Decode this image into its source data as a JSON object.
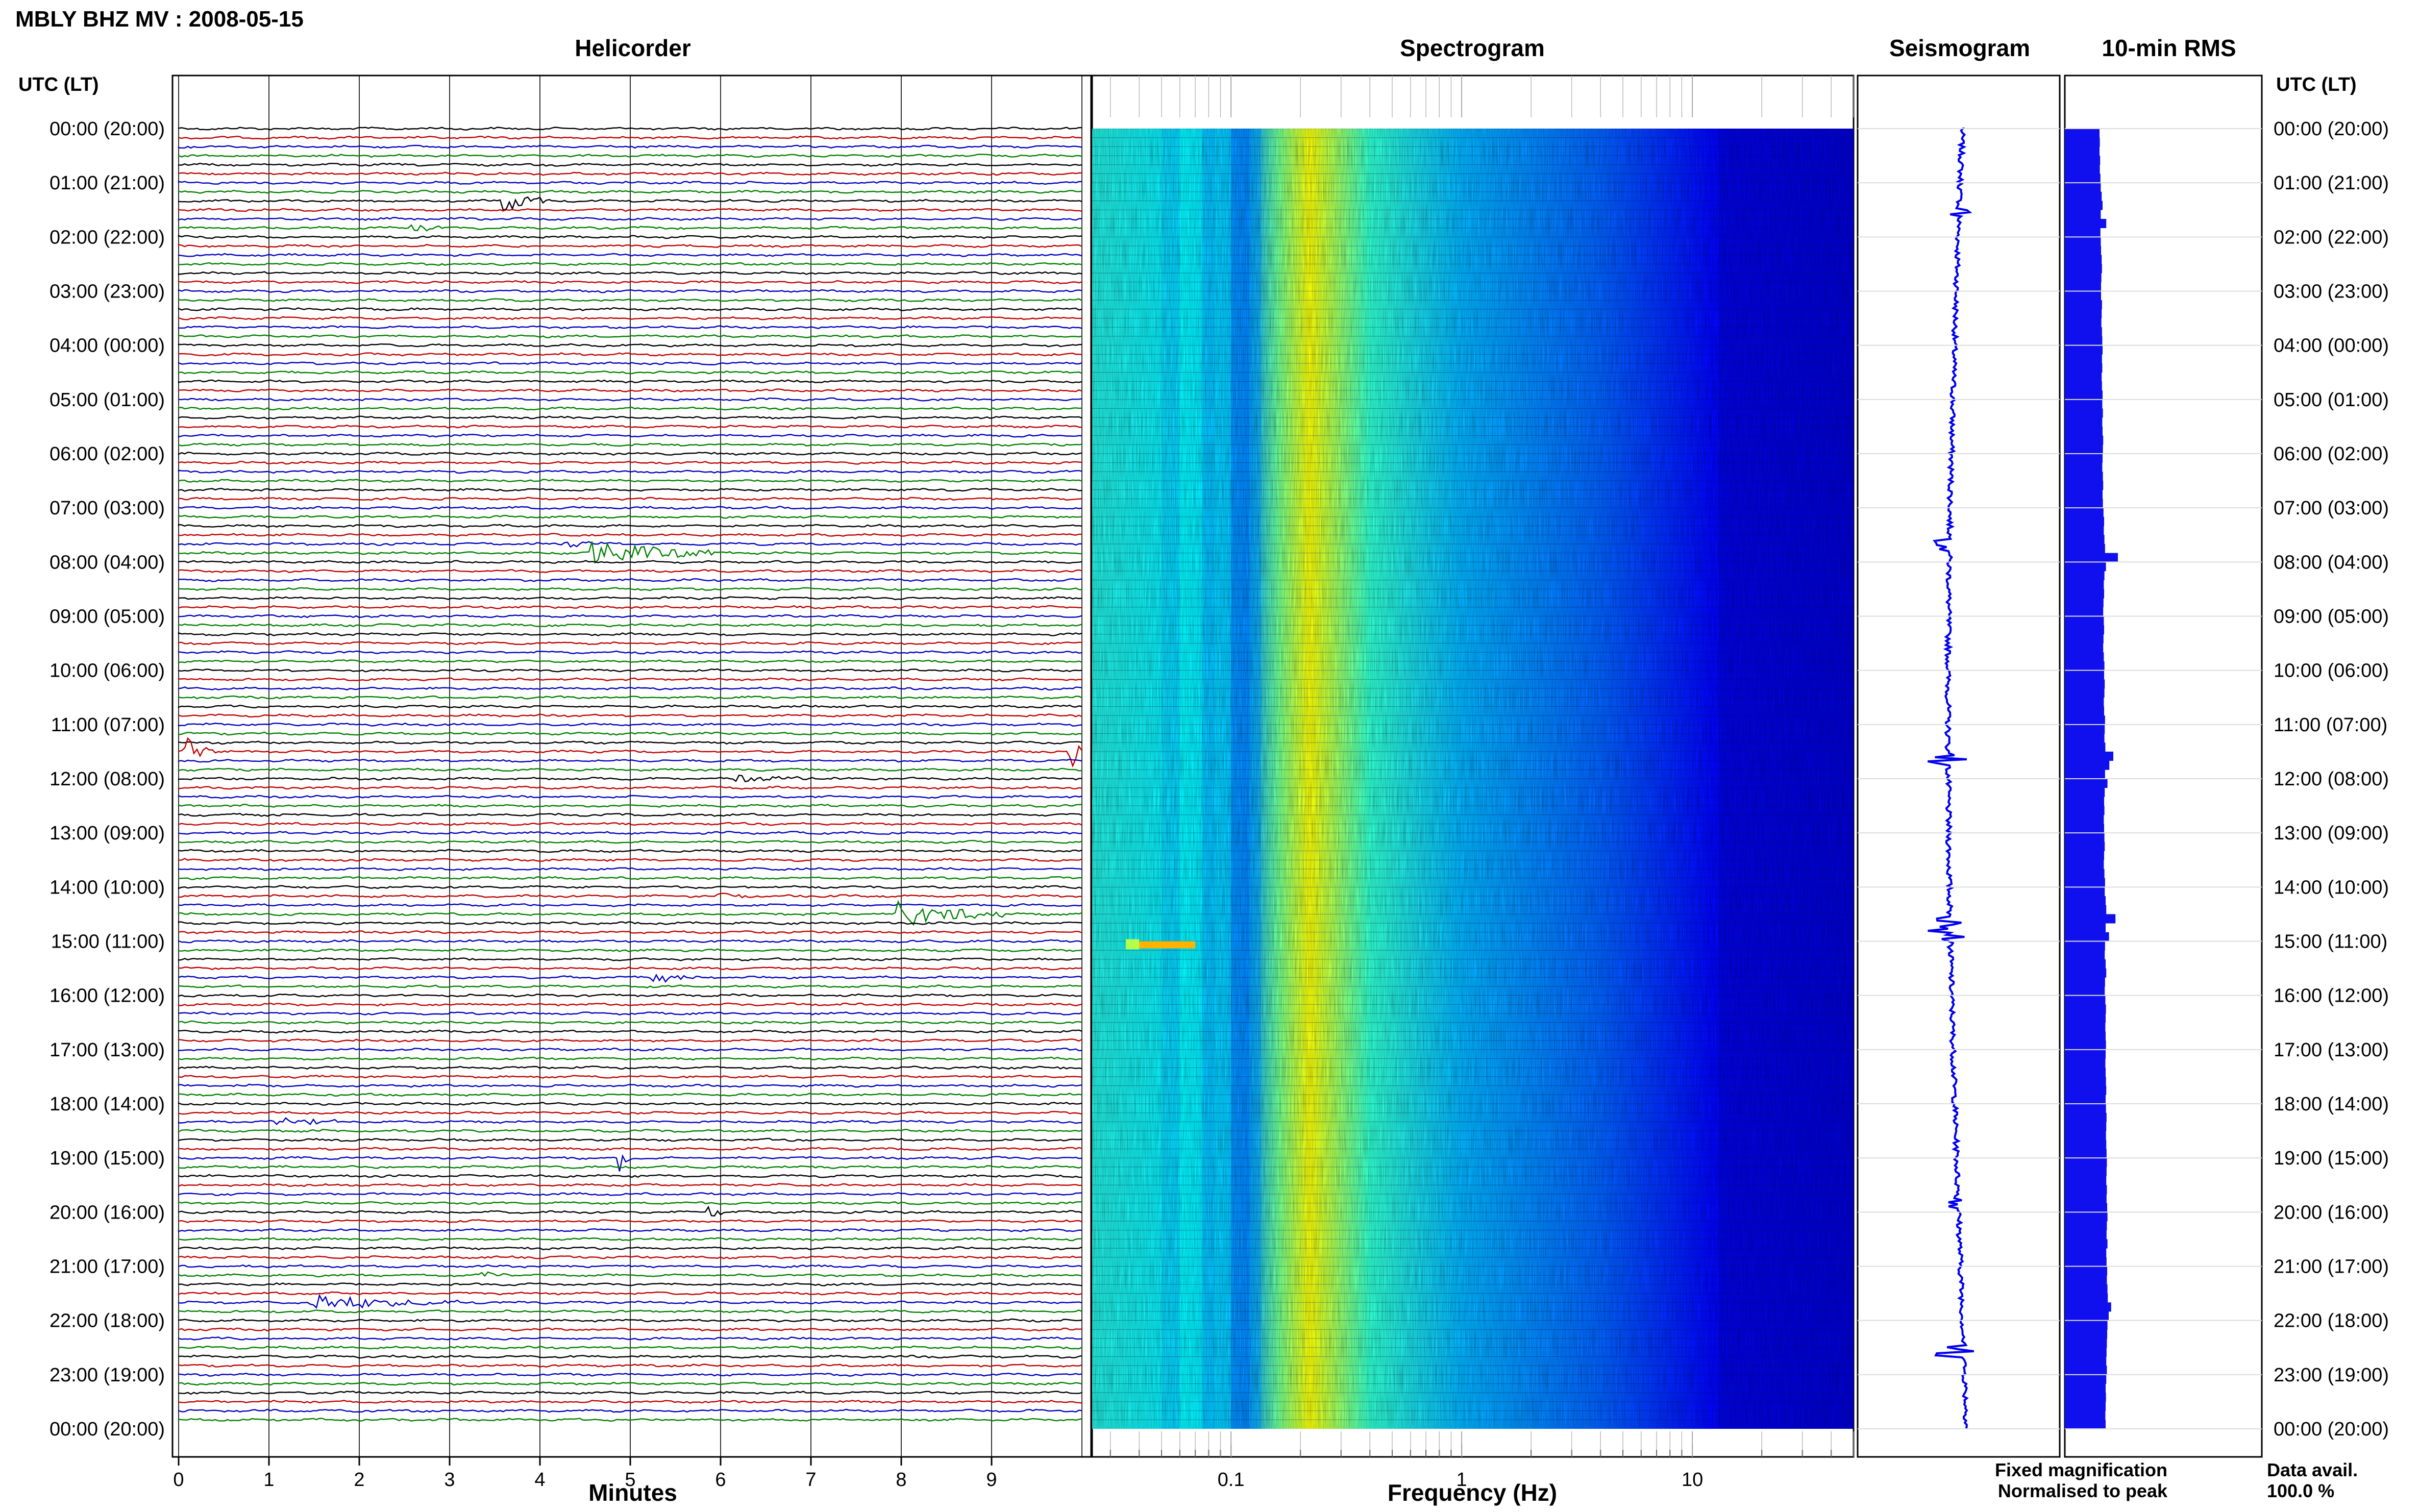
{
  "station_title": "MBLY BHZ MV : 2008-05-15",
  "panels": {
    "helicorder": "Helicorder",
    "spectrogram": "Spectrogram",
    "seismogram": "Seismogram",
    "rms": "10-min RMS"
  },
  "time_axis_label": "UTC (LT)",
  "footer": {
    "fixed_magnification": "Fixed magnification",
    "normalised_to_peak": "Normalised to peak",
    "data_avail_label": "Data avail.",
    "data_avail_value": "100.0 %"
  },
  "colors": {
    "fixed": "#1f1fff",
    "normalised": "#ff1a1a",
    "trace_cycle": [
      "#000000",
      "#c00000",
      "#0000c0",
      "#008000"
    ],
    "rms_bar": "#1010ee"
  },
  "chart_data": [
    {
      "type": "line",
      "title": "Helicorder",
      "xlabel": "Minutes",
      "x_ticks": [
        "0",
        "1",
        "2",
        "3",
        "4",
        "5",
        "6",
        "7",
        "8",
        "9"
      ],
      "xlim": [
        0,
        10
      ],
      "y_ticks": [
        "00:00 (20:00)",
        "01:00 (21:00)",
        "02:00 (22:00)",
        "03:00 (23:00)",
        "04:00 (00:00)",
        "05:00 (01:00)",
        "06:00 (02:00)",
        "07:00 (03:00)",
        "08:00 (04:00)",
        "09:00 (05:00)",
        "10:00 (06:00)",
        "11:00 (07:00)",
        "12:00 (08:00)",
        "13:00 (09:00)",
        "14:00 (10:00)",
        "15:00 (11:00)",
        "16:00 (12:00)",
        "17:00 (13:00)",
        "18:00 (14:00)",
        "19:00 (15:00)",
        "20:00 (16:00)",
        "21:00 (17:00)",
        "22:00 (18:00)",
        "23:00 (19:00)",
        "00:00 (20:00)"
      ],
      "trace_count": 144,
      "minutes_per_trace": 10,
      "events": [
        {
          "trace": 8,
          "minute": 3.6,
          "amp": 1.0,
          "len": 0.5
        },
        {
          "trace": 11,
          "minute": 2.6,
          "amp": 0.3,
          "len": 0.4
        },
        {
          "trace": 47,
          "minute": 4.6,
          "amp": 1.2,
          "len": 1.4
        },
        {
          "trace": 46,
          "minute": 4.3,
          "amp": 0.3,
          "len": 0.6
        },
        {
          "trace": 69,
          "minute": 9.9,
          "amp": 1.4,
          "len": 0.3
        },
        {
          "trace": 69,
          "minute": 0.1,
          "amp": 1.2,
          "len": 0.3
        },
        {
          "trace": 72,
          "minute": 6.2,
          "amp": 0.35,
          "len": 1.2
        },
        {
          "trace": 85,
          "minute": 6.0,
          "amp": 0.3,
          "len": 0.5
        },
        {
          "trace": 87,
          "minute": 8.0,
          "amp": 1.1,
          "len": 1.3
        },
        {
          "trace": 94,
          "minute": 5.3,
          "amp": 0.5,
          "len": 0.4
        },
        {
          "trace": 110,
          "minute": 1.1,
          "amp": 0.5,
          "len": 0.7
        },
        {
          "trace": 114,
          "minute": 4.9,
          "amp": 1.2,
          "len": 0.15
        },
        {
          "trace": 120,
          "minute": 5.9,
          "amp": 0.5,
          "len": 0.15
        },
        {
          "trace": 127,
          "minute": 3.4,
          "amp": 0.3,
          "len": 0.3
        },
        {
          "trace": 130,
          "minute": 1.5,
          "amp": 0.9,
          "len": 1.6
        }
      ]
    },
    {
      "type": "heatmap",
      "title": "Spectrogram",
      "xlabel": "Frequency (Hz)",
      "x_scale": "log",
      "xlim": [
        0.025,
        50
      ],
      "x_ticks": [
        "0.1",
        "1",
        "10"
      ],
      "y_ticks": [
        "00:00 (20:00)",
        "01:00 (21:00)",
        "02:00 (22:00)",
        "03:00 (23:00)",
        "04:00 (00:00)",
        "05:00 (01:00)",
        "06:00 (02:00)",
        "07:00 (03:00)",
        "08:00 (04:00)",
        "09:00 (05:00)",
        "10:00 (06:00)",
        "11:00 (07:00)",
        "12:00 (08:00)",
        "13:00 (09:00)",
        "14:00 (10:00)",
        "15:00 (11:00)",
        "16:00 (12:00)",
        "17:00 (13:00)",
        "18:00 (14:00)",
        "19:00 (15:00)",
        "20:00 (16:00)",
        "21:00 (17:00)",
        "22:00 (18:00)",
        "23:00 (19:00)",
        "00:00 (20:00)"
      ],
      "colormap": "jet",
      "power_profile": [
        {
          "hz": 0.025,
          "level": 0.45
        },
        {
          "hz": 0.06,
          "level": 0.38
        },
        {
          "hz": 0.12,
          "level": 0.28
        },
        {
          "hz": 0.16,
          "level": 0.48
        },
        {
          "hz": 0.22,
          "level": 0.62
        },
        {
          "hz": 0.4,
          "level": 0.42
        },
        {
          "hz": 1.0,
          "level": 0.3
        },
        {
          "hz": 4.0,
          "level": 0.22
        },
        {
          "hz": 12.0,
          "level": 0.13
        },
        {
          "hz": 50.0,
          "level": 0.1
        }
      ]
    },
    {
      "type": "line",
      "title": "Seismogram",
      "description_units": "24-hour vertical trace"
    },
    {
      "type": "bar",
      "title": "10-min RMS",
      "orientation": "horizontal",
      "bin_minutes": 10,
      "values": [
        0.4,
        0.41,
        0.4,
        0.42,
        0.41,
        0.43,
        0.44,
        0.47,
        0.5,
        0.44,
        0.62,
        0.43,
        0.44,
        0.45,
        0.47,
        0.48,
        0.46,
        0.45,
        0.45,
        0.48,
        0.47,
        0.46,
        0.48,
        0.49,
        0.5,
        0.48,
        0.49,
        0.47,
        0.48,
        0.5,
        0.49,
        0.51,
        0.49,
        0.5,
        0.52,
        0.51,
        0.5,
        0.49,
        0.51,
        0.52,
        0.5,
        0.51,
        0.53,
        0.55,
        0.54,
        0.56,
        0.58,
        1.0,
        0.61,
        0.56,
        0.54,
        0.55,
        0.53,
        0.52,
        0.54,
        0.55,
        0.53,
        0.52,
        0.54,
        0.56,
        0.55,
        0.57,
        0.56,
        0.54,
        0.55,
        0.58,
        0.57,
        0.56,
        0.59,
        0.85,
        0.72,
        0.58,
        0.66,
        0.57,
        0.55,
        0.56,
        0.54,
        0.55,
        0.56,
        0.57,
        0.55,
        0.54,
        0.56,
        0.58,
        0.57,
        0.6,
        0.62,
        0.92,
        0.6,
        0.71,
        0.58,
        0.57,
        0.6,
        0.62,
        0.58,
        0.57,
        0.59,
        0.61,
        0.6,
        0.59,
        0.6,
        0.61,
        0.6,
        0.59,
        0.6,
        0.61,
        0.62,
        0.6,
        0.61,
        0.63,
        0.62,
        0.61,
        0.62,
        0.63,
        0.64,
        0.63,
        0.62,
        0.64,
        0.63,
        0.65,
        0.66,
        0.64,
        0.63,
        0.66,
        0.62,
        0.63,
        0.65,
        0.64,
        0.66,
        0.67,
        0.78,
        0.7,
        0.66,
        0.65,
        0.64,
        0.63,
        0.62,
        0.64,
        0.62,
        0.6,
        0.61,
        0.6,
        0.59,
        0.6
      ]
    }
  ]
}
